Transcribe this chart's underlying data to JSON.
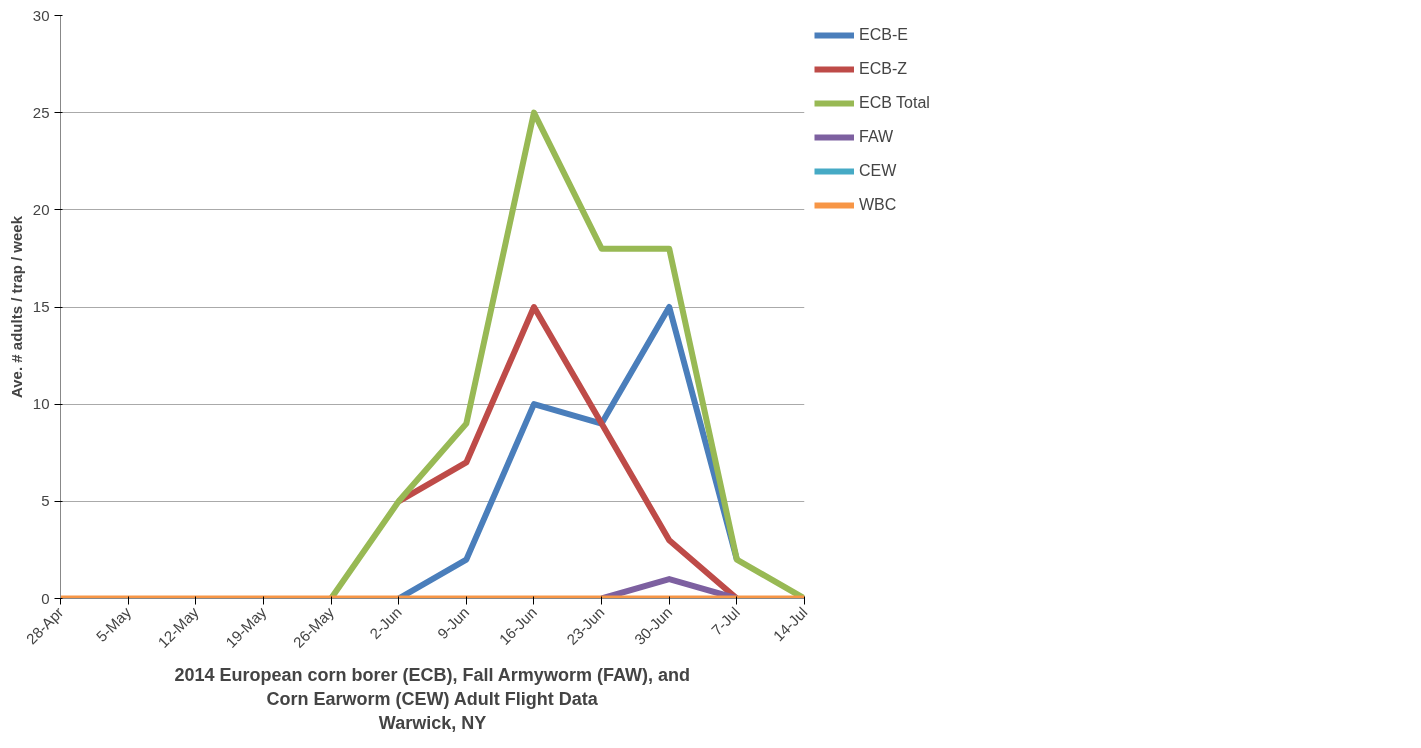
{
  "chart_data": {
    "type": "line",
    "xlabel": "2014 European corn borer (ECB), Fall Armyworm (FAW), and\nCorn Earworm (CEW) Adult Flight Data\nWarwick, NY",
    "ylabel": "Ave. # adults / trap / week",
    "categories": [
      "28-Apr",
      "5-May",
      "12-May",
      "19-May",
      "26-May",
      "2-Jun",
      "9-Jun",
      "16-Jun",
      "23-Jun",
      "30-Jun",
      "7-Jul",
      "14-Jul"
    ],
    "series": [
      {
        "name": "ECB-E",
        "color": "#4a7ebb",
        "values": [
          null,
          null,
          null,
          null,
          null,
          0,
          2,
          10,
          9,
          15,
          2,
          null
        ]
      },
      {
        "name": "ECB-Z",
        "color": "#be4b48",
        "values": [
          null,
          null,
          null,
          null,
          null,
          5,
          7,
          15,
          9,
          3,
          0,
          null
        ]
      },
      {
        "name": "ECB Total",
        "color": "#98b954",
        "values": [
          null,
          null,
          null,
          null,
          0,
          5,
          9,
          25,
          18,
          18,
          2,
          0
        ]
      },
      {
        "name": "FAW",
        "color": "#7d60a0",
        "values": [
          null,
          null,
          null,
          null,
          null,
          null,
          null,
          null,
          0,
          1,
          0,
          null
        ]
      },
      {
        "name": "CEW",
        "color": "#46aac5",
        "values": [
          null,
          null,
          null,
          null,
          null,
          null,
          null,
          null,
          null,
          null,
          null,
          null
        ]
      },
      {
        "name": "WBC",
        "color": "#f79646",
        "values": [
          0,
          0,
          0,
          0,
          0,
          0,
          0,
          0,
          0,
          0,
          0,
          0
        ]
      }
    ],
    "ylim": [
      0,
      30
    ],
    "yticks": [
      0,
      5,
      10,
      15,
      20,
      25,
      30
    ],
    "grid": "y",
    "legend": "right",
    "marker": "none",
    "line_style": "solid"
  }
}
